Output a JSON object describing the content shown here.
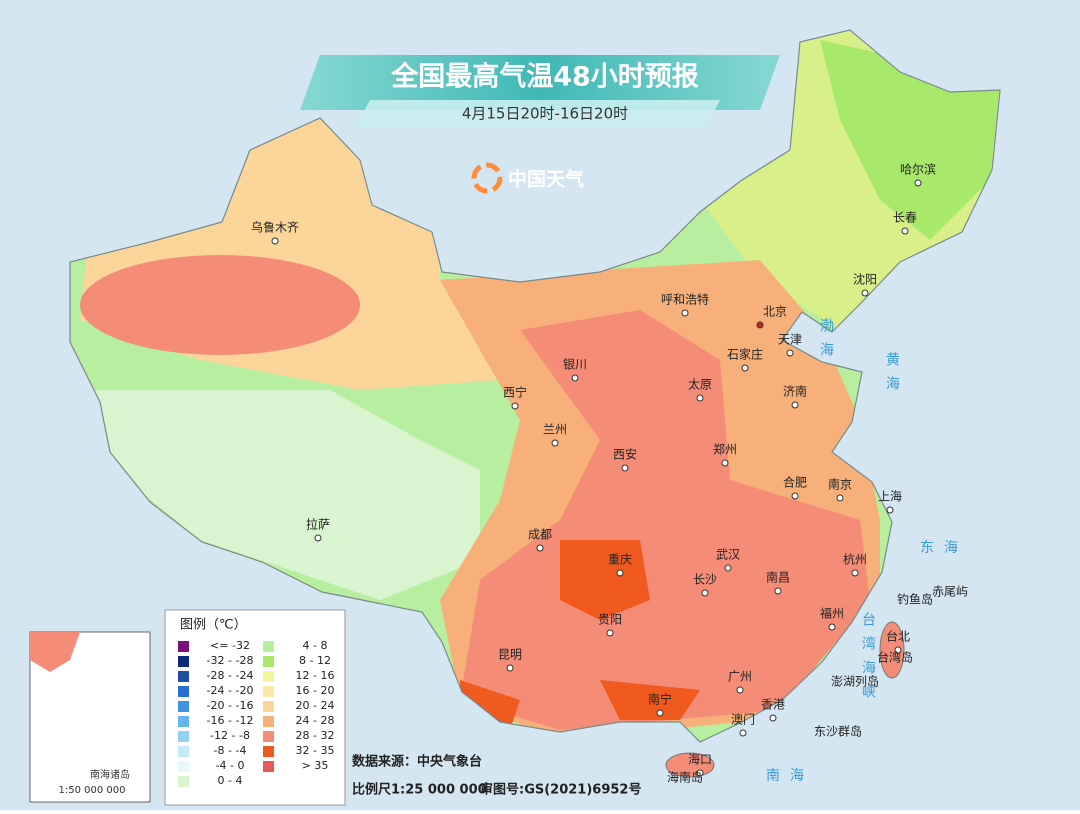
{
  "header": {
    "title": "全国最高气温48小时预报",
    "subtitle": "4月15日20时-16日20时",
    "logo": "中国天气"
  },
  "cities": [
    "乌鲁木齐",
    "哈尔滨",
    "长春",
    "沈阳",
    "呼和浩特",
    "北京",
    "天津",
    "石家庄",
    "银川",
    "太原",
    "济南",
    "西宁",
    "兰州",
    "郑州",
    "西安",
    "合肥",
    "南京",
    "上海",
    "拉萨",
    "成都",
    "武汉",
    "杭州",
    "重庆",
    "长沙",
    "南昌",
    "福州",
    "贵阳",
    "台北",
    "昆明",
    "广州",
    "南宁",
    "香港",
    "澳门",
    "海口"
  ],
  "places": [
    "台湾岛",
    "海南岛",
    "钓鱼岛",
    "赤尾屿",
    "澎湖列岛",
    "东沙群岛"
  ],
  "seas": [
    "渤海",
    "黄海",
    "东海",
    "台湾海峡",
    "南海"
  ],
  "legend": {
    "title": "图例（℃）",
    "items": [
      {
        "label": "<= -32",
        "color": "#7b0f7e"
      },
      {
        "label": "-32 - -28",
        "color": "#0a2a7a"
      },
      {
        "label": "-28 - -24",
        "color": "#1e4fa0"
      },
      {
        "label": "-24 - -20",
        "color": "#2a6fcf"
      },
      {
        "label": "-20 - -16",
        "color": "#3f92e0"
      },
      {
        "label": "-16 - -12",
        "color": "#66b5ec"
      },
      {
        "label": "-12 - -8",
        "color": "#94d0f2"
      },
      {
        "label": "-8 - -4",
        "color": "#c4ebf8"
      },
      {
        "label": "-4 - 0",
        "color": "#e8f8fb"
      },
      {
        "label": "0 - 4",
        "color": "#d9f5d0"
      },
      {
        "label": "4 - 8",
        "color": "#b8eea0"
      },
      {
        "label": "8 - 12",
        "color": "#a8e86a"
      },
      {
        "label": "12 - 16",
        "color": "#f2f59a"
      },
      {
        "label": "16 - 20",
        "color": "#fbe9a8"
      },
      {
        "label": "20 - 24",
        "color": "#fcd59a"
      },
      {
        "label": "24 - 28",
        "color": "#f7b07a"
      },
      {
        "label": "28 - 32",
        "color": "#f48c78"
      },
      {
        "label": "32 - 35",
        "color": "#f05a1e"
      },
      {
        "label": "> 35",
        "color": "#e85a5a"
      }
    ]
  },
  "footer": {
    "source": "数据来源：中央气象台",
    "scale": "比例尺1:25 000 000",
    "approval": "审图号:GS(2021)6952号"
  },
  "inset": {
    "label": "南海诸岛",
    "scale": "1:50 000 000"
  }
}
